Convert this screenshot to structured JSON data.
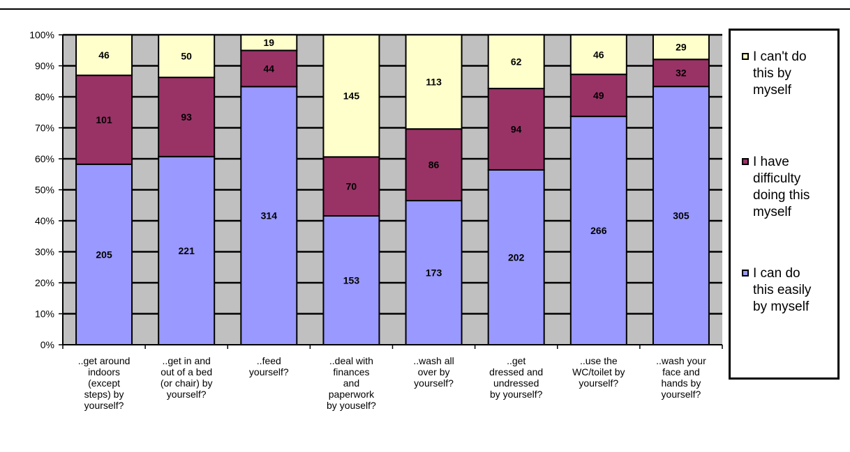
{
  "chart_data": {
    "type": "bar",
    "stacked": "percent",
    "categories": [
      "..get around indoors (except steps) by yourself?",
      "..get in and out of a bed (or chair) by yourself?",
      "..feed yourself?",
      "..deal with finances and paperwork by youself?",
      "..wash all over by yourself?",
      "..get dressed and undressed by yourself?",
      "..use the WC/toilet by yourself?",
      "..wash your face and hands by yourself?"
    ],
    "category_lines": [
      [
        "..get around",
        "indoors",
        "(except",
        "steps) by",
        "yourself?"
      ],
      [
        "..get in and",
        "out of a bed",
        "(or chair) by",
        "yourself?"
      ],
      [
        "..feed",
        "yourself?"
      ],
      [
        "..deal with",
        "finances",
        "and",
        "paperwork",
        "by youself?"
      ],
      [
        "..wash all",
        "over by",
        "yourself?"
      ],
      [
        "..get",
        "dressed and",
        "undressed",
        "by yourself?"
      ],
      [
        "..use the",
        "WC/toilet by",
        "yourself?"
      ],
      [
        "..wash your",
        "face and",
        "hands by",
        "yourself?"
      ]
    ],
    "series": [
      {
        "name": "I can do this easily by myself",
        "color": "#9999FF",
        "values": [
          205,
          221,
          314,
          153,
          173,
          202,
          266,
          305
        ]
      },
      {
        "name": "I have difficulty doing this myself",
        "color": "#993366",
        "values": [
          101,
          93,
          44,
          70,
          86,
          94,
          49,
          32
        ]
      },
      {
        "name": "I can't do this by myself",
        "color": "#FFFFCC",
        "values": [
          46,
          50,
          19,
          145,
          113,
          62,
          46,
          29
        ]
      }
    ],
    "yticks": [
      "0%",
      "10%",
      "20%",
      "30%",
      "40%",
      "50%",
      "60%",
      "70%",
      "80%",
      "90%",
      "100%"
    ],
    "ylim": [
      0,
      100
    ],
    "plot_background": "#C0C0C0",
    "grid": true,
    "legend": {
      "placement": "right",
      "order": [
        2,
        1,
        0
      ],
      "lines": [
        [
          "I can't do",
          "this by",
          "myself"
        ],
        [
          "I have",
          "difficulty",
          "doing this",
          "myself"
        ],
        [
          "I can do",
          "this easily",
          "by myself"
        ]
      ]
    }
  }
}
